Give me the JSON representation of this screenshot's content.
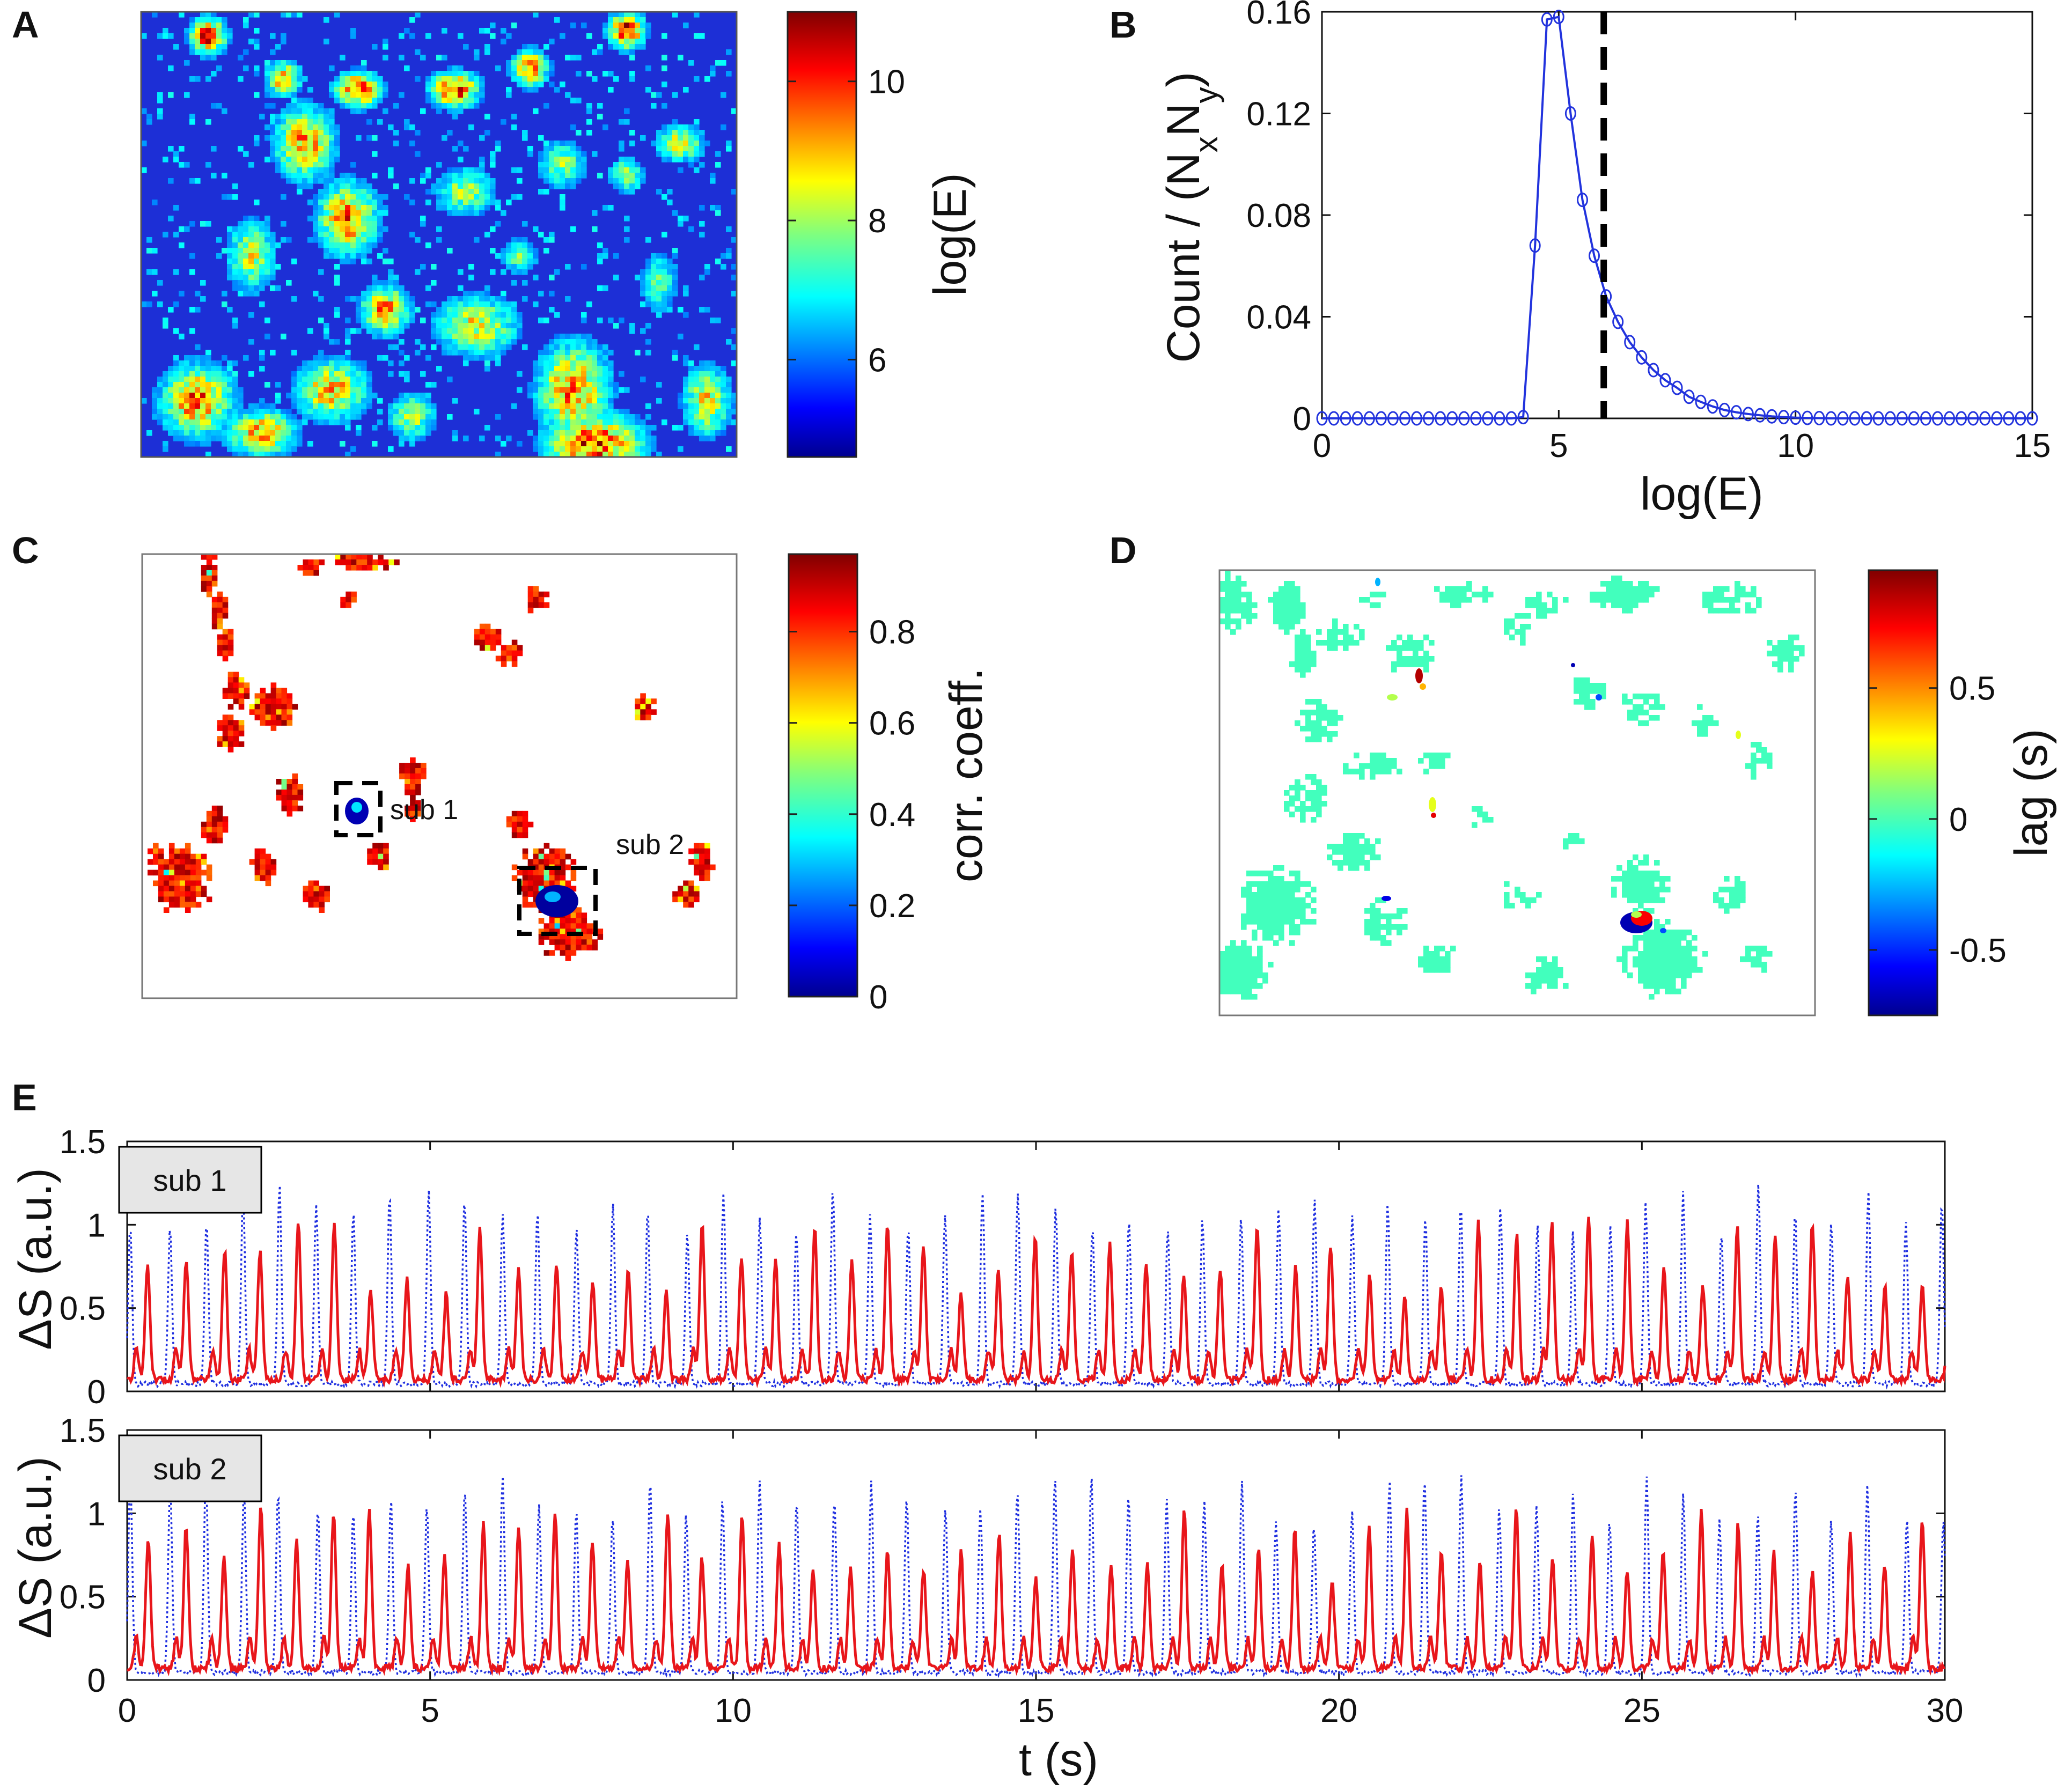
{
  "panels": {
    "A": {
      "letter": "A",
      "colorbar": {
        "label": "log(E)",
        "ticks": [
          "10",
          "8",
          "6"
        ],
        "tick_values": [
          10,
          8,
          6
        ],
        "range": [
          4.6,
          11.0
        ]
      }
    },
    "B": {
      "letter": "B",
      "threshold_line_x": 5.95
    },
    "C": {
      "letter": "C",
      "colorbar": {
        "label": "corr. coeff.",
        "ticks": [
          "0.8",
          "0.6",
          "0.4",
          "0.2",
          "0"
        ],
        "tick_values": [
          0.8,
          0.6,
          0.4,
          0.2,
          0
        ],
        "range": [
          0,
          0.97
        ]
      },
      "regions": [
        {
          "label": "sub 1"
        },
        {
          "label": "sub 2"
        }
      ]
    },
    "D": {
      "letter": "D",
      "colorbar": {
        "label": "lag (s)",
        "ticks": [
          "0.5",
          "0",
          "-0.5"
        ],
        "tick_values": [
          0.5,
          0,
          -0.5
        ],
        "range": [
          -0.75,
          0.95
        ]
      }
    },
    "E": {
      "letter": "E",
      "sub1": {
        "label": "sub 1"
      },
      "sub2": {
        "label": "sub 2"
      }
    }
  },
  "colors": {
    "red_trace": "#e8161b",
    "blue_trace": "#1f2fe0",
    "histogram": "#2233dd",
    "label_box": "#e6e6e6"
  },
  "chart_data": [
    {
      "type": "heatmap",
      "panel": "A",
      "description_value": "log(E)",
      "zlim": [
        4.6,
        11.0
      ]
    },
    {
      "type": "line",
      "panel": "B",
      "xlabel": "log(E)",
      "ylabel": "Count / (NxNy)",
      "xlim": [
        0,
        15
      ],
      "ylim": [
        0,
        0.16
      ],
      "xticks": [
        "0",
        "5",
        "10",
        "15"
      ],
      "xtick_values": [
        0,
        5,
        10,
        15
      ],
      "yticks": [
        "0",
        "0.04",
        "0.08",
        "0.12",
        "0.16"
      ],
      "ytick_values": [
        0,
        0.04,
        0.08,
        0.12,
        0.16
      ],
      "x": [
        0,
        0.25,
        0.5,
        0.75,
        1,
        1.25,
        1.5,
        1.75,
        2,
        2.25,
        2.5,
        2.75,
        3,
        3.25,
        3.5,
        3.75,
        4,
        4.25,
        4.5,
        4.75,
        5,
        5.25,
        5.5,
        5.75,
        6,
        6.25,
        6.5,
        6.75,
        7,
        7.25,
        7.5,
        7.75,
        8,
        8.25,
        8.5,
        8.75,
        9,
        9.25,
        9.5,
        9.75,
        10,
        10.25,
        10.5,
        10.75,
        11,
        11.25,
        11.5,
        11.75,
        12,
        12.25,
        12.5,
        12.75,
        13,
        13.25,
        13.5,
        13.75,
        14,
        14.25,
        14.5,
        14.75,
        15
      ],
      "y": [
        0,
        0,
        0,
        0,
        0,
        0,
        0,
        0,
        0,
        0,
        0,
        0,
        0,
        0,
        0,
        0,
        0,
        0.0005,
        0.068,
        0.157,
        0.158,
        0.12,
        0.086,
        0.064,
        0.048,
        0.038,
        0.03,
        0.024,
        0.019,
        0.015,
        0.012,
        0.0085,
        0.0065,
        0.0047,
        0.0033,
        0.0024,
        0.0017,
        0.0012,
        0.0008,
        0.0005,
        0.0003,
        0.0002,
        0.0001,
        0,
        0,
        0,
        0,
        0,
        0,
        0,
        0,
        0,
        0,
        0,
        0,
        0,
        0,
        0,
        0,
        0,
        0
      ],
      "threshold": 5.95
    },
    {
      "type": "heatmap",
      "panel": "C",
      "description_value": "corr. coeff.",
      "zlim": [
        0,
        0.97
      ]
    },
    {
      "type": "heatmap",
      "panel": "D",
      "description_value": "lag (s)",
      "zlim": [
        -0.75,
        0.95
      ]
    },
    {
      "type": "line",
      "panel": "E",
      "xlabel": "t (s)",
      "ylabel": "ΔS (a.u.)",
      "xlim": [
        0,
        30
      ],
      "ylim": [
        0,
        1.5
      ],
      "xticks": [
        "0",
        "5",
        "10",
        "15",
        "20",
        "25",
        "30"
      ],
      "xtick_values": [
        0,
        5,
        10,
        15,
        20,
        25,
        30
      ],
      "yticks": [
        "0",
        "0.5",
        "1",
        "1.5"
      ],
      "ytick_values": [
        0,
        0.5,
        1,
        1.5
      ],
      "series": [
        {
          "name": "sub 1 red (solid)",
          "period_s": 0.61,
          "peak_range": [
            0.55,
            1.0
          ]
        },
        {
          "name": "sub 1 blue (dotted)",
          "period_s": 0.61,
          "peak_range": [
            0.9,
            1.2
          ]
        },
        {
          "name": "sub 2 red (solid)",
          "period_s": 0.61,
          "peak_range": [
            0.45,
            1.0
          ]
        },
        {
          "name": "sub 2 blue (dotted)",
          "period_s": 0.61,
          "peak_range": [
            0.9,
            1.25
          ]
        }
      ]
    }
  ]
}
